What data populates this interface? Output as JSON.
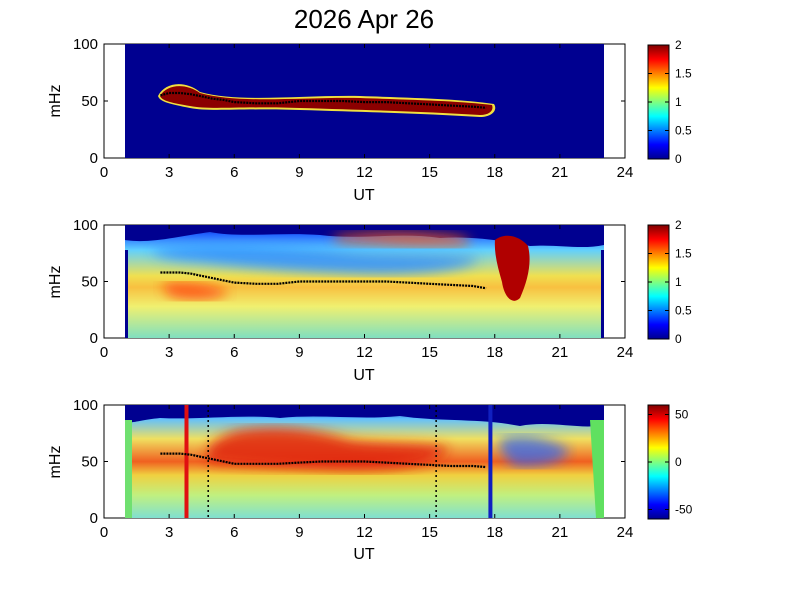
{
  "figure": {
    "title": "2026 Apr 26",
    "colors": {
      "background": "#000080",
      "data_fill_top": "#8b0000",
      "trace_line": "#000000",
      "start_marker": "#e01010",
      "end_marker": "#1020c0",
      "dotted_marker": "#000000"
    }
  },
  "chart_data": [
    {
      "type": "heatmap",
      "panel": "top",
      "xlabel": "UT",
      "ylabel": "mHz",
      "xlim": [
        0,
        24
      ],
      "ylim": [
        0,
        100
      ],
      "xticks": [
        "0",
        "3",
        "6",
        "9",
        "12",
        "15",
        "18",
        "21",
        "24"
      ],
      "yticks": [
        "0",
        "50",
        "100"
      ],
      "data_extent_ut": [
        1,
        23
      ],
      "colorbar": {
        "range": [
          0,
          2
        ],
        "ticks": [
          "0",
          "0.5",
          "1",
          "1.5",
          "2"
        ],
        "colormap": "jet"
      },
      "feature_band": {
        "ut_start": 2.6,
        "ut_end": 17.9,
        "description_value": 2
      },
      "trace": {
        "ut": [
          2.6,
          3.0,
          3.5,
          4.0,
          4.5,
          5.0,
          5.5,
          6.0,
          7.0,
          8.0,
          9.0,
          10.0,
          11.0,
          12.0,
          13.0,
          14.0,
          15.0,
          16.0,
          17.0,
          17.6
        ],
        "mHz": [
          55,
          57,
          57,
          56,
          54,
          52,
          51,
          49,
          48,
          48,
          50,
          50,
          50,
          49,
          49,
          48,
          47,
          46,
          45,
          44
        ]
      }
    },
    {
      "type": "heatmap",
      "panel": "middle",
      "xlabel": "UT",
      "ylabel": "mHz",
      "xlim": [
        0,
        24
      ],
      "ylim": [
        0,
        100
      ],
      "xticks": [
        "0",
        "3",
        "6",
        "9",
        "12",
        "15",
        "18",
        "21",
        "24"
      ],
      "yticks": [
        "0",
        "50",
        "100"
      ],
      "data_extent_ut": [
        1,
        23
      ],
      "colorbar": {
        "range": [
          0,
          2
        ],
        "ticks": [
          "0",
          "0.5",
          "1",
          "1.5",
          "2"
        ],
        "colormap": "jet"
      },
      "trace": {
        "ut": [
          2.6,
          3.0,
          3.5,
          4.0,
          4.5,
          5.0,
          5.5,
          6.0,
          7.0,
          8.0,
          9.0,
          10.0,
          11.0,
          12.0,
          13.0,
          14.0,
          15.0,
          16.0,
          17.0,
          17.6
        ],
        "mHz": [
          58,
          58,
          58,
          57,
          55,
          53,
          51,
          49,
          48,
          48,
          50,
          50,
          50,
          50,
          50,
          49,
          48,
          47,
          46,
          44
        ]
      }
    },
    {
      "type": "heatmap",
      "panel": "bottom",
      "xlabel": "UT",
      "ylabel": "mHz",
      "xlim": [
        0,
        24
      ],
      "ylim": [
        0,
        100
      ],
      "xticks": [
        "0",
        "3",
        "6",
        "9",
        "12",
        "15",
        "18",
        "21",
        "24"
      ],
      "yticks": [
        "0",
        "50",
        "100"
      ],
      "data_extent_ut": [
        1,
        23
      ],
      "colorbar": {
        "range": [
          -60,
          60
        ],
        "ticks": [
          "50",
          "0",
          "-50"
        ],
        "colormap": "jet"
      },
      "markers": {
        "start_ut": 3.8,
        "end_ut": 17.8,
        "dotted_ut": [
          4.8,
          15.3
        ]
      },
      "trace": {
        "ut": [
          2.6,
          3.0,
          3.5,
          4.0,
          4.5,
          5.0,
          5.5,
          6.0,
          7.0,
          8.0,
          9.0,
          10.0,
          11.0,
          12.0,
          13.0,
          14.0,
          15.0,
          16.0,
          17.0,
          17.6
        ],
        "mHz": [
          57,
          57,
          57,
          56,
          54,
          52,
          50,
          48,
          48,
          48,
          49,
          50,
          50,
          50,
          49,
          48,
          47,
          46,
          46,
          45
        ]
      }
    }
  ]
}
